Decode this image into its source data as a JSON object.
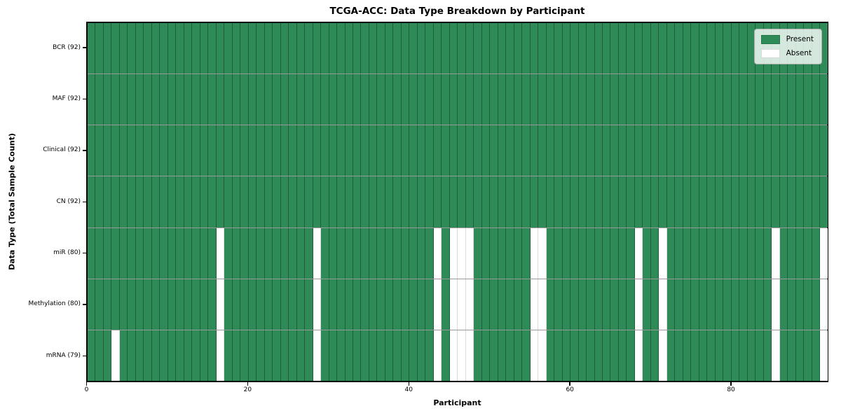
{
  "chart_data": {
    "type": "heatmap",
    "title": "TCGA-ACC: Data Type Breakdown by Participant",
    "xlabel": "Participant",
    "ylabel": "Data Type (Total Sample Count)",
    "n_participants": 92,
    "x_ticks": [
      0,
      20,
      40,
      60,
      80
    ],
    "xlim": [
      0,
      92
    ],
    "grid": false,
    "legend_position": "upper right",
    "colors": {
      "present": "#2e8b57",
      "absent": "#ffffff"
    },
    "legend": [
      {
        "label": "Present",
        "color": "#2e8b57"
      },
      {
        "label": "Absent",
        "color": "#ffffff"
      }
    ],
    "rows": [
      {
        "label": "BCR (92)",
        "count": 92,
        "absent": []
      },
      {
        "label": "MAF (92)",
        "count": 92,
        "absent": []
      },
      {
        "label": "Clinical (92)",
        "count": 92,
        "absent": []
      },
      {
        "label": "CN (92)",
        "count": 92,
        "absent": []
      },
      {
        "label": "miR (80)",
        "count": 80,
        "absent": [
          16,
          28,
          43,
          45,
          46,
          47,
          55,
          56,
          68,
          71,
          85,
          91
        ]
      },
      {
        "label": "Methylation (80)",
        "count": 80,
        "absent": [
          16,
          28,
          43,
          45,
          46,
          47,
          55,
          56,
          68,
          71,
          85,
          91
        ]
      },
      {
        "label": "mRNA (79)",
        "count": 79,
        "absent": [
          3,
          16,
          28,
          43,
          45,
          46,
          47,
          55,
          56,
          68,
          71,
          85,
          91
        ]
      }
    ]
  }
}
